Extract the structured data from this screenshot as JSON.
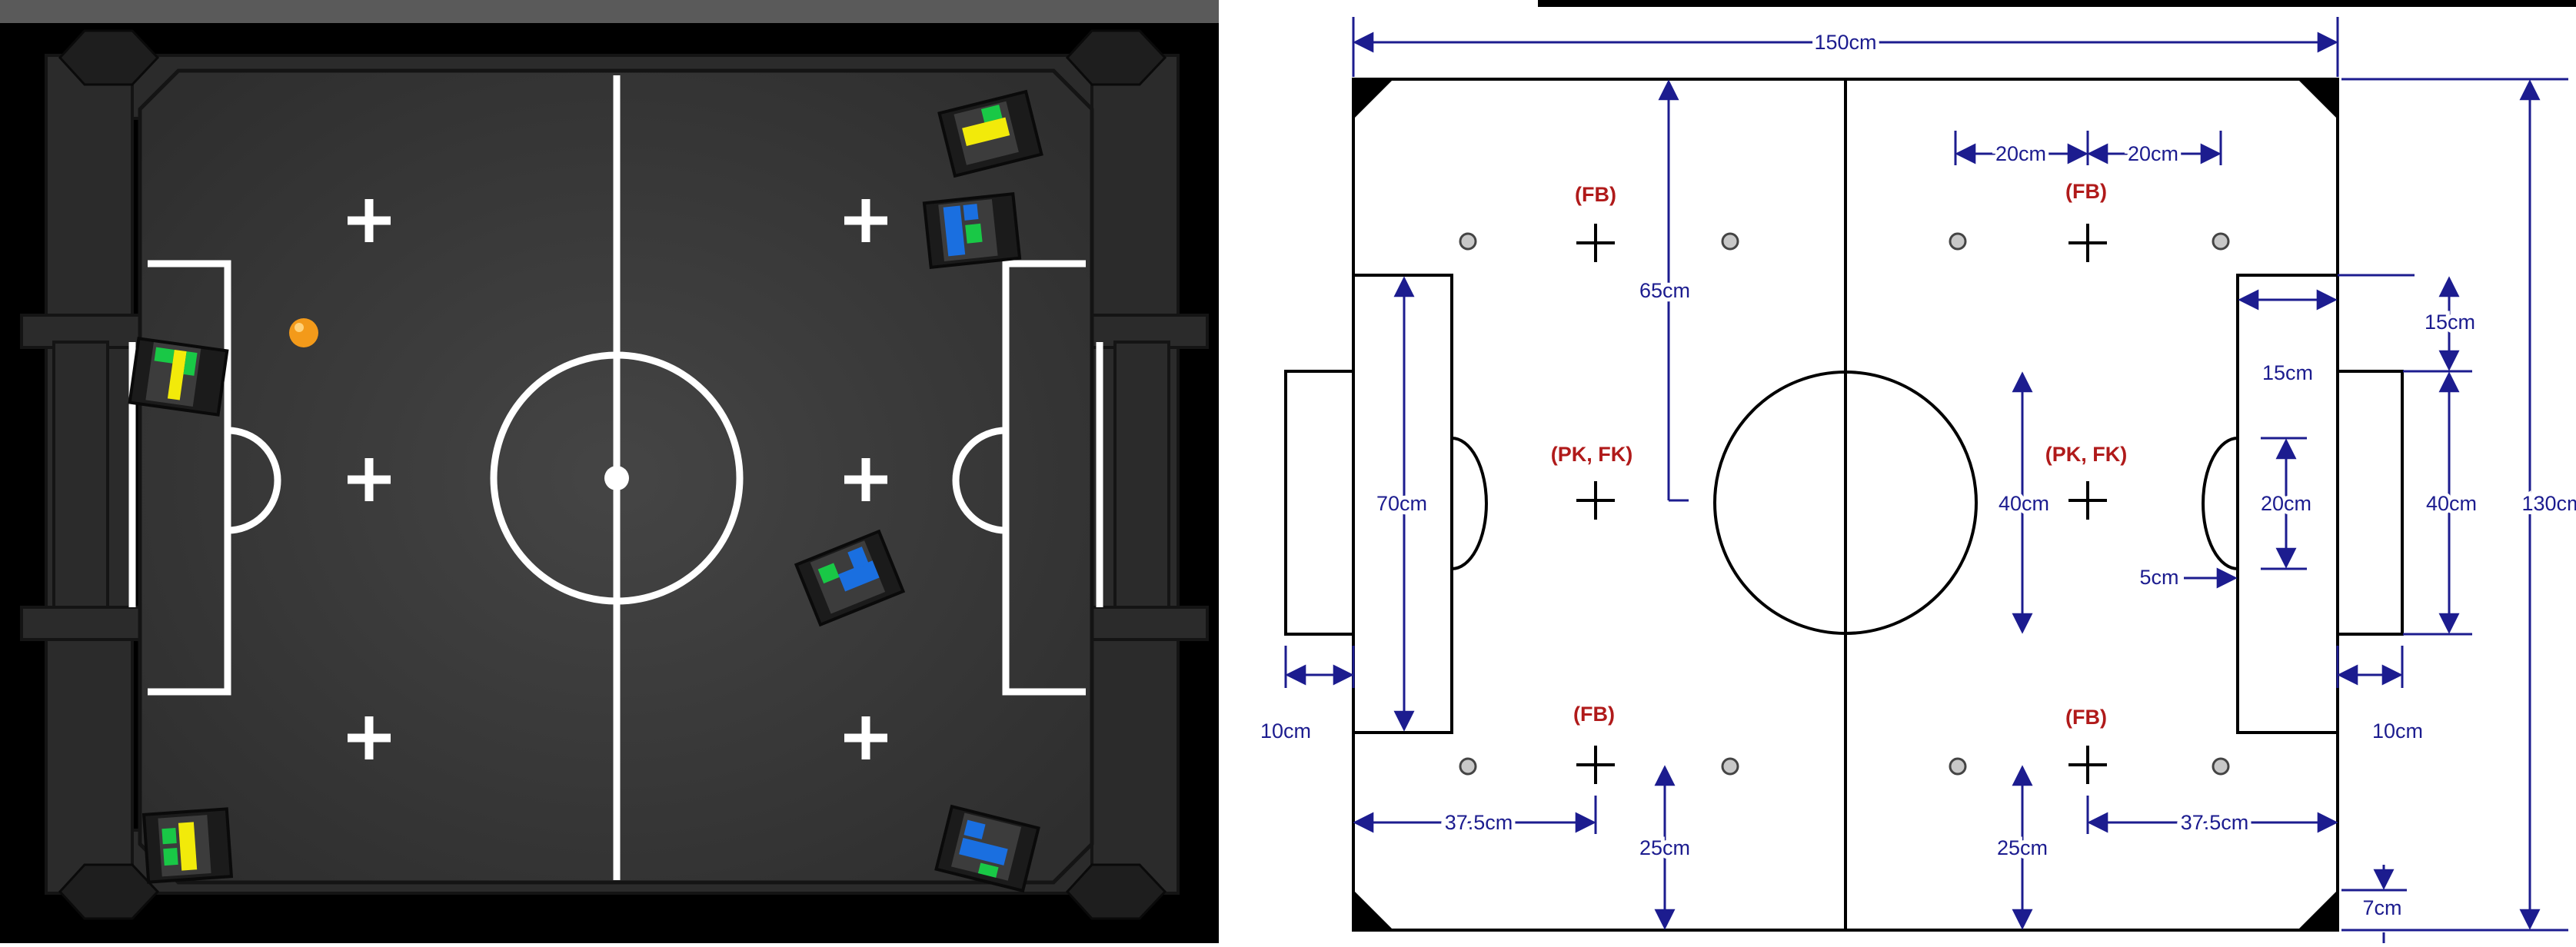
{
  "colors": {
    "sim_floor": "#373737",
    "sim_wall": "#2a2a2a",
    "line_white": "#ffffff",
    "ball": "#f39a1a",
    "dimension": "#1c1c8f",
    "zone_label": "#b01a1a",
    "robot_yellow": "#f2ea0a",
    "robot_blue": "#1a6fe0",
    "robot_green": "#19c846"
  },
  "icons": {
    "ball": "orange-ball-icon",
    "robot": "robot-top-icon",
    "neutral_spot": "plus-icon",
    "spot_marker": "circle-dot-icon"
  },
  "diagram": {
    "labels": {
      "fb_left_top": "(FB)",
      "fb_right_top": "(FB)",
      "pkfk_left": "(PK, FK)",
      "pkfk_right": "(PK, FK)",
      "fb_left_bottom": "(FB)",
      "fb_right_bottom": "(FB)"
    },
    "dimensions": {
      "width_total": "150cm",
      "height_total": "130cm",
      "spot_spacing_left": "20cm",
      "spot_spacing_right": "20cm",
      "top_to_center_spot": "65cm",
      "penalty_area_height": "70cm",
      "penalty_area_depth": "15cm",
      "goal_setback_top": "15cm",
      "goal_width_left": "40cm",
      "goal_width_right": "40cm",
      "arc_diameter": "20cm",
      "arc_offset": "5cm",
      "goal_depth_left": "10cm",
      "goal_depth_right": "10cm",
      "spot_from_goal_left": "37.5cm",
      "spot_from_goal_right": "37.5cm",
      "spot_from_bottom_left": "25cm",
      "spot_from_bottom_right": "25cm",
      "corner_size": "7cm"
    }
  }
}
